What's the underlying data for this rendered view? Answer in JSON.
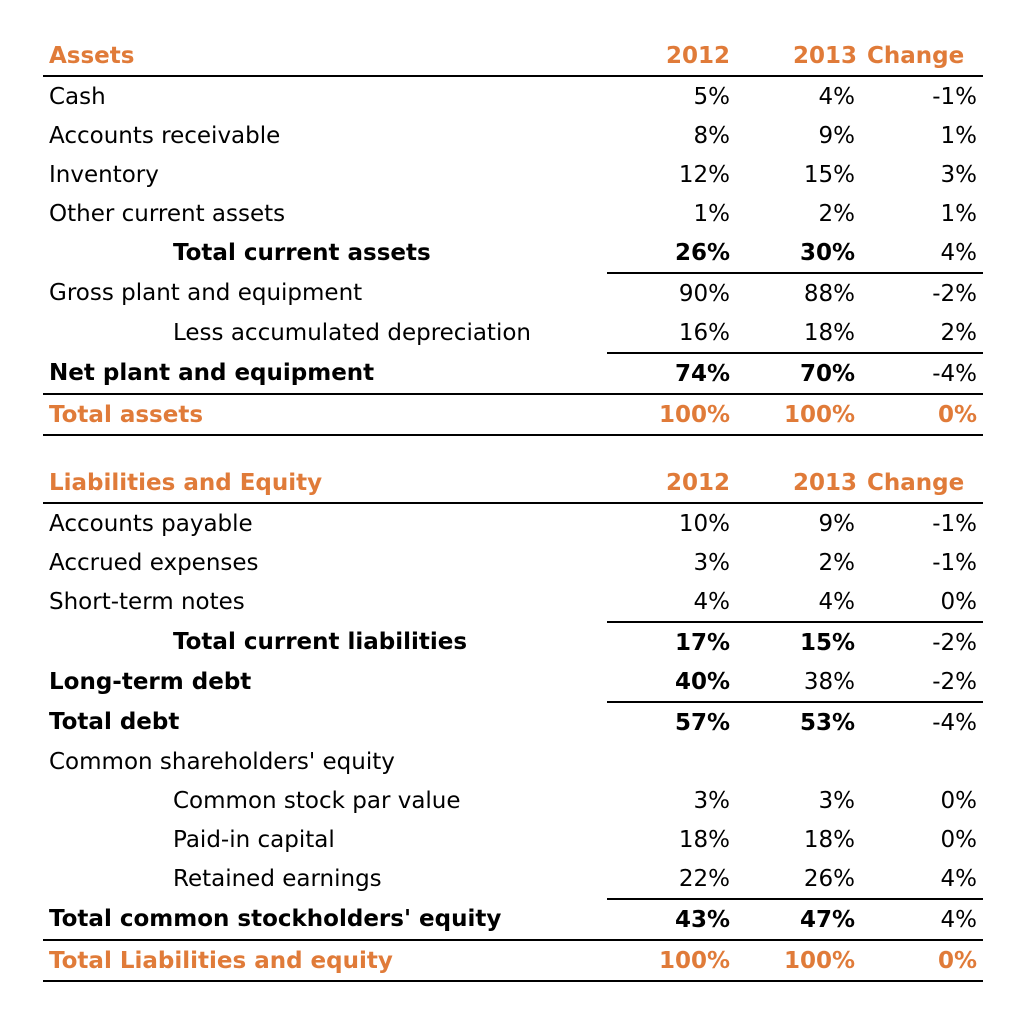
{
  "assets": {
    "header": {
      "label": "Assets",
      "y2012": "2012",
      "y2013": "2013",
      "change": "Change"
    },
    "rows": [
      {
        "label": "Cash",
        "v2012": "5%",
        "v2013": "4%",
        "change": "-1%"
      },
      {
        "label": "Accounts receivable",
        "v2012": "8%",
        "v2013": "9%",
        "change": "1%"
      },
      {
        "label": "Inventory",
        "v2012": "12%",
        "v2013": "15%",
        "change": "3%"
      },
      {
        "label": "Other current assets",
        "v2012": "1%",
        "v2013": "2%",
        "change": "1%"
      },
      {
        "label": "Total current assets",
        "v2012": "26%",
        "v2013": "30%",
        "change": "4%"
      },
      {
        "label": "Gross plant and equipment",
        "v2012": "90%",
        "v2013": "88%",
        "change": "-2%"
      },
      {
        "label": "Less accumulated depreciation",
        "v2012": "16%",
        "v2013": "18%",
        "change": "2%"
      },
      {
        "label": "Net plant and equipment",
        "v2012": "74%",
        "v2013": "70%",
        "change": "-4%"
      },
      {
        "label": "Total assets",
        "v2012": "100%",
        "v2013": "100%",
        "change": "0%"
      }
    ]
  },
  "liabilities": {
    "header": {
      "label": "Liabilities and Equity",
      "y2012": "2012",
      "y2013": "2013",
      "change": "Change"
    },
    "rows": [
      {
        "label": "Accounts payable",
        "v2012": "10%",
        "v2013": "9%",
        "change": "-1%"
      },
      {
        "label": "Accrued expenses",
        "v2012": "3%",
        "v2013": "2%",
        "change": "-1%"
      },
      {
        "label": "Short-term notes",
        "v2012": "4%",
        "v2013": "4%",
        "change": "0%"
      },
      {
        "label": "Total current liabilities",
        "v2012": "17%",
        "v2013": "15%",
        "change": "-2%"
      },
      {
        "label": "Long-term debt",
        "v2012": "40%",
        "v2013": "38%",
        "change": "-2%"
      },
      {
        "label": "Total debt",
        "v2012": "57%",
        "v2013": "53%",
        "change": "-4%"
      },
      {
        "label": "Common shareholders' equity",
        "v2012": "",
        "v2013": "",
        "change": ""
      },
      {
        "label": "Common stock par value",
        "v2012": "3%",
        "v2013": "3%",
        "change": "0%"
      },
      {
        "label": "Paid-in capital",
        "v2012": "18%",
        "v2013": "18%",
        "change": "0%"
      },
      {
        "label": "Retained earnings",
        "v2012": "22%",
        "v2013": "26%",
        "change": "4%"
      },
      {
        "label": "Total common stockholders' equity",
        "v2012": "43%",
        "v2013": "47%",
        "change": "4%"
      },
      {
        "label": "Total Liabilities and equity",
        "v2012": "100%",
        "v2013": "100%",
        "change": "0%"
      }
    ]
  },
  "colors": {
    "accent": "#e07b39",
    "text": "#000000"
  }
}
